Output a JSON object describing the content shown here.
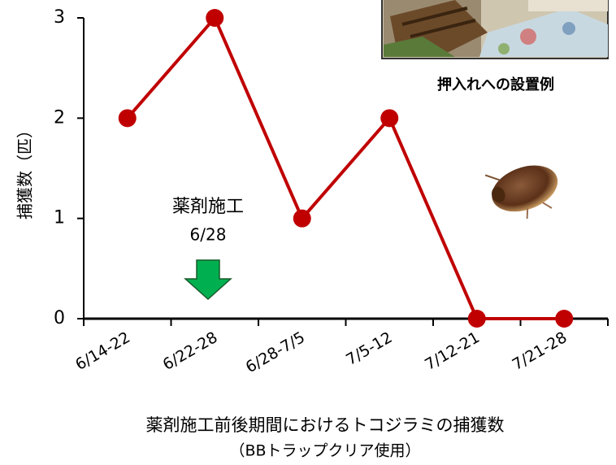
{
  "chart_data": {
    "type": "line",
    "ylabel": "捕獲数（匹）",
    "xlabel": [
      "薬剤施工前後期間におけるトコジラミの捕獲数",
      "（BBトラップクリア使用）"
    ],
    "categories": [
      "6/14-22",
      "6/22-28",
      "6/28-7/5",
      "7/5-12",
      "7/12-21",
      "7/21-28"
    ],
    "values": [
      2,
      3,
      1,
      2,
      0,
      0
    ],
    "color": "#c00000",
    "ylim": [
      0,
      3
    ],
    "yticks": [
      0,
      1,
      2,
      3
    ],
    "annotation": [
      "薬剤施工",
      "6/28"
    ],
    "photo_caption": "押入れへの設置例"
  }
}
